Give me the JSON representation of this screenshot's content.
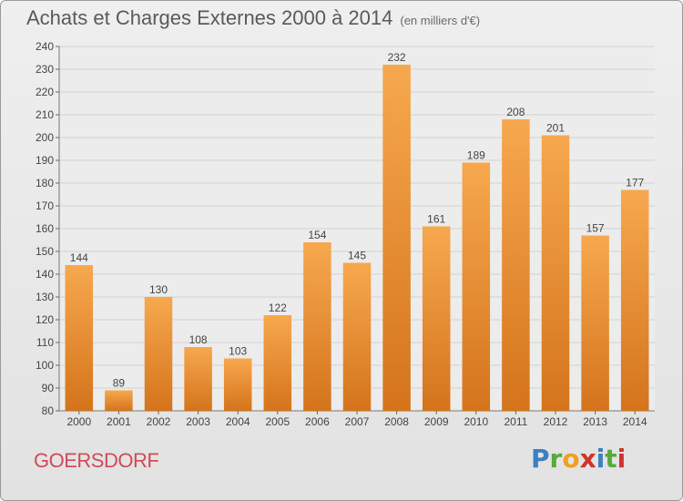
{
  "header": {
    "title": "Achats et Charges Externes 2000 à 2014",
    "subtitle": "(en milliers d'€)"
  },
  "footer": {
    "commune": "GOERSDORF",
    "logo_letters": [
      "P",
      "r",
      "o",
      "x",
      "i",
      "t",
      "i"
    ],
    "logo_colors": [
      "#3d7fc2",
      "#5aa83c",
      "#f0a020",
      "#d0342c",
      "#3d7fc2",
      "#5aa83c",
      "#d0342c"
    ]
  },
  "chart_data": {
    "type": "bar",
    "title": "Achats et Charges Externes 2000 à 2014",
    "subtitle": "(en milliers d'€)",
    "categories": [
      "2000",
      "2001",
      "2002",
      "2003",
      "2004",
      "2005",
      "2006",
      "2007",
      "2008",
      "2009",
      "2010",
      "2011",
      "2012",
      "2013",
      "2014"
    ],
    "values": [
      144,
      89,
      130,
      108,
      103,
      122,
      154,
      145,
      232,
      161,
      189,
      208,
      201,
      157,
      177
    ],
    "ylim": [
      80,
      240
    ],
    "yticks": [
      80,
      90,
      100,
      110,
      120,
      130,
      140,
      150,
      160,
      170,
      180,
      190,
      200,
      210,
      220,
      230,
      240
    ],
    "grid": true,
    "bar_color_top": "#f7a84e",
    "bar_color_bottom": "#d4741c",
    "xlabel": "",
    "ylabel": ""
  }
}
